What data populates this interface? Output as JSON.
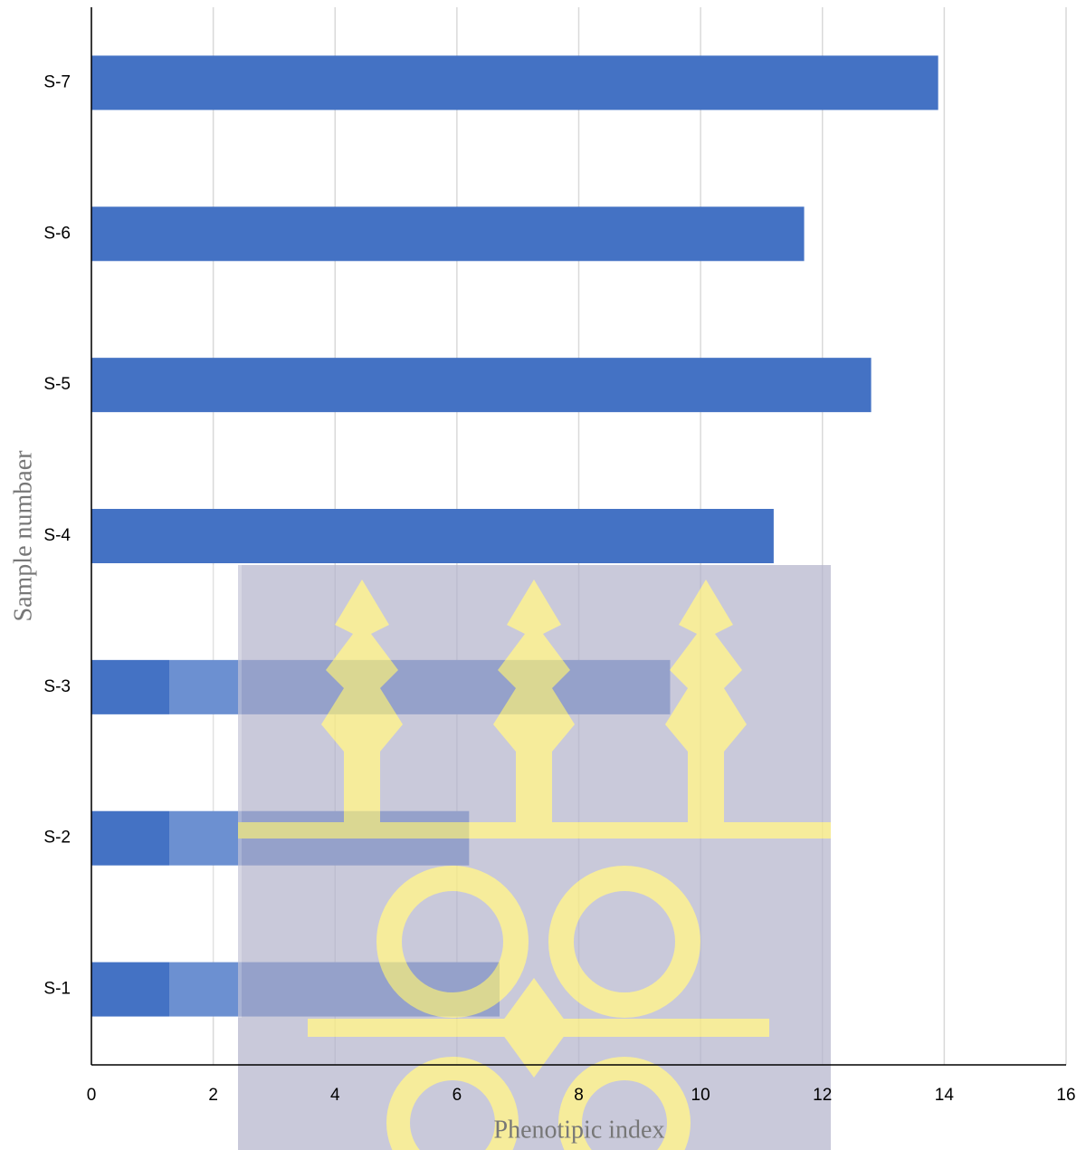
{
  "chart_data": {
    "type": "bar",
    "orientation": "horizontal",
    "x_label": "Phenotipic index",
    "y_label": "Sample numbaer",
    "categories": [
      "S-1",
      "S-2",
      "S-3",
      "S-4",
      "S-5",
      "S-6",
      "S-7"
    ],
    "values": [
      6.7,
      6.2,
      9.5,
      11.2,
      12.8,
      11.7,
      13.9
    ],
    "color": "#4472c4",
    "xlim": [
      0,
      16
    ],
    "xticks": [
      0,
      2,
      4,
      6,
      8,
      10,
      12,
      14,
      16
    ],
    "grid": true
  }
}
